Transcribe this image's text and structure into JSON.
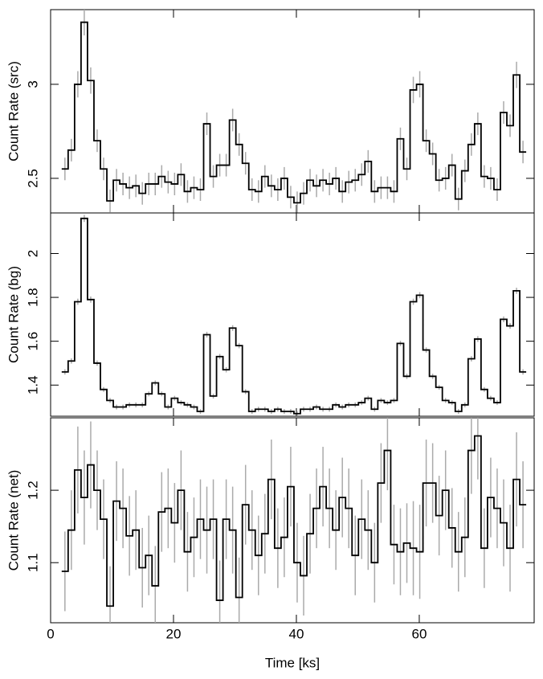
{
  "chart_data": [
    {
      "type": "step",
      "ylabel": "Count Rate (src)",
      "xlim": [
        0,
        78.7
      ],
      "xticks": [
        0,
        20,
        40,
        60
      ],
      "ylim": [
        2.316,
        3.397
      ],
      "yticks": [
        2.5,
        3
      ],
      "color": "#000000",
      "error_color": "#aaaaaa",
      "x": [
        2.33,
        3.38,
        4.43,
        5.48,
        6.53,
        7.58,
        8.63,
        9.68,
        10.73,
        11.78,
        12.83,
        13.88,
        14.93,
        15.98,
        17.03,
        18.08,
        19.13,
        20.18,
        21.23,
        22.28,
        23.33,
        24.38,
        25.43,
        26.48,
        27.53,
        28.58,
        29.63,
        30.68,
        31.73,
        32.78,
        33.83,
        34.88,
        35.93,
        36.98,
        38.03,
        39.08,
        40.13,
        41.18,
        42.23,
        43.28,
        44.33,
        45.38,
        46.43,
        47.48,
        48.53,
        49.58,
        50.63,
        51.68,
        52.73,
        53.78,
        54.83,
        55.88,
        56.93,
        57.98,
        59.03,
        60.08,
        61.13,
        62.18,
        63.23,
        64.28,
        65.33,
        66.38,
        67.43,
        68.48,
        69.53,
        70.58,
        71.63,
        72.68,
        73.73,
        74.78,
        75.83,
        76.88
      ],
      "values": [
        2.55,
        2.65,
        3.0,
        3.33,
        3.02,
        2.7,
        2.55,
        2.38,
        2.49,
        2.47,
        2.45,
        2.46,
        2.42,
        2.47,
        2.47,
        2.51,
        2.48,
        2.47,
        2.52,
        2.43,
        2.45,
        2.44,
        2.79,
        2.51,
        2.57,
        2.57,
        2.81,
        2.68,
        2.58,
        2.44,
        2.43,
        2.51,
        2.46,
        2.44,
        2.5,
        2.4,
        2.37,
        2.42,
        2.49,
        2.46,
        2.49,
        2.47,
        2.5,
        2.43,
        2.48,
        2.49,
        2.52,
        2.59,
        2.43,
        2.45,
        2.45,
        2.43,
        2.71,
        2.55,
        2.97,
        3.0,
        2.7,
        2.63,
        2.49,
        2.5,
        2.57,
        2.39,
        2.54,
        2.68,
        2.79,
        2.51,
        2.5,
        2.44,
        2.85,
        2.78,
        3.05,
        2.64
      ],
      "errors": [
        0.06,
        0.06,
        0.07,
        0.07,
        0.07,
        0.06,
        0.06,
        0.06,
        0.06,
        0.06,
        0.06,
        0.06,
        0.06,
        0.06,
        0.06,
        0.06,
        0.06,
        0.06,
        0.06,
        0.06,
        0.06,
        0.06,
        0.06,
        0.06,
        0.06,
        0.06,
        0.06,
        0.06,
        0.06,
        0.06,
        0.06,
        0.06,
        0.06,
        0.06,
        0.06,
        0.06,
        0.06,
        0.06,
        0.06,
        0.06,
        0.06,
        0.06,
        0.06,
        0.06,
        0.06,
        0.06,
        0.06,
        0.06,
        0.06,
        0.06,
        0.06,
        0.06,
        0.06,
        0.06,
        0.07,
        0.07,
        0.06,
        0.06,
        0.06,
        0.06,
        0.06,
        0.06,
        0.06,
        0.06,
        0.06,
        0.06,
        0.06,
        0.06,
        0.06,
        0.06,
        0.07,
        0.06
      ]
    },
    {
      "type": "step",
      "ylabel": "Count Rate (bg)",
      "xlim": [
        0,
        78.7
      ],
      "xticks": [
        0,
        20,
        40,
        60
      ],
      "ylim": [
        1.258,
        2.185
      ],
      "yticks": [
        1.4,
        1.6,
        1.8,
        2
      ],
      "color": "#000000",
      "error_color": "#aaaaaa",
      "x": [
        2.33,
        3.38,
        4.43,
        5.48,
        6.53,
        7.58,
        8.63,
        9.68,
        10.73,
        11.78,
        12.83,
        13.88,
        14.93,
        15.98,
        17.03,
        18.08,
        19.13,
        20.18,
        21.23,
        22.28,
        23.33,
        24.38,
        25.43,
        26.48,
        27.53,
        28.58,
        29.63,
        30.68,
        31.73,
        32.78,
        33.83,
        34.88,
        35.93,
        36.98,
        38.03,
        39.08,
        40.13,
        41.18,
        42.23,
        43.28,
        44.33,
        45.38,
        46.43,
        47.48,
        48.53,
        49.58,
        50.63,
        51.68,
        52.73,
        53.78,
        54.83,
        55.88,
        56.93,
        57.98,
        59.03,
        60.08,
        61.13,
        62.18,
        63.23,
        64.28,
        65.33,
        66.38,
        67.43,
        68.48,
        69.53,
        70.58,
        71.63,
        72.68,
        73.73,
        74.78,
        75.83,
        76.88
      ],
      "values": [
        1.46,
        1.51,
        1.78,
        2.16,
        1.79,
        1.5,
        1.38,
        1.33,
        1.3,
        1.3,
        1.31,
        1.31,
        1.31,
        1.36,
        1.41,
        1.36,
        1.3,
        1.34,
        1.32,
        1.31,
        1.3,
        1.28,
        1.63,
        1.35,
        1.53,
        1.47,
        1.66,
        1.58,
        1.37,
        1.28,
        1.29,
        1.29,
        1.28,
        1.29,
        1.28,
        1.28,
        1.27,
        1.29,
        1.29,
        1.3,
        1.29,
        1.29,
        1.31,
        1.3,
        1.31,
        1.31,
        1.32,
        1.34,
        1.29,
        1.33,
        1.32,
        1.33,
        1.59,
        1.44,
        1.78,
        1.81,
        1.56,
        1.44,
        1.39,
        1.33,
        1.32,
        1.28,
        1.31,
        1.52,
        1.61,
        1.38,
        1.34,
        1.32,
        1.7,
        1.67,
        1.83,
        1.46
      ],
      "errors": [
        0.012,
        0.012,
        0.014,
        0.016,
        0.014,
        0.012,
        0.011,
        0.011,
        0.011,
        0.011,
        0.011,
        0.011,
        0.011,
        0.011,
        0.011,
        0.011,
        0.011,
        0.011,
        0.011,
        0.011,
        0.011,
        0.011,
        0.013,
        0.011,
        0.012,
        0.012,
        0.013,
        0.012,
        0.011,
        0.011,
        0.011,
        0.011,
        0.011,
        0.011,
        0.011,
        0.011,
        0.011,
        0.011,
        0.011,
        0.011,
        0.011,
        0.011,
        0.011,
        0.011,
        0.011,
        0.011,
        0.011,
        0.011,
        0.011,
        0.011,
        0.011,
        0.011,
        0.012,
        0.012,
        0.014,
        0.014,
        0.012,
        0.012,
        0.011,
        0.011,
        0.011,
        0.011,
        0.011,
        0.012,
        0.013,
        0.011,
        0.011,
        0.011,
        0.013,
        0.013,
        0.014,
        0.012
      ]
    },
    {
      "type": "step",
      "ylabel": "Count Rate (net)",
      "xlabel": "Time [ks]",
      "xlim": [
        0,
        78.7
      ],
      "xticks": [
        0,
        20,
        40,
        60
      ],
      "ylim": [
        1.017,
        1.3
      ],
      "yticks": [
        1.1,
        1.2
      ],
      "color": "#000000",
      "error_color": "#aaaaaa",
      "x": [
        2.33,
        3.38,
        4.43,
        5.48,
        6.53,
        7.58,
        8.63,
        9.68,
        10.73,
        11.78,
        12.83,
        13.88,
        14.93,
        15.98,
        17.03,
        18.08,
        19.13,
        20.18,
        21.23,
        22.28,
        23.33,
        24.38,
        25.43,
        26.48,
        27.53,
        28.58,
        29.63,
        30.68,
        31.73,
        32.78,
        33.83,
        34.88,
        35.93,
        36.98,
        38.03,
        39.08,
        40.13,
        41.18,
        42.23,
        43.28,
        44.33,
        45.38,
        46.43,
        47.48,
        48.53,
        49.58,
        50.63,
        51.68,
        52.73,
        53.78,
        54.83,
        55.88,
        56.93,
        57.98,
        59.03,
        60.08,
        61.13,
        62.18,
        63.23,
        64.28,
        65.33,
        66.38,
        67.43,
        68.48,
        69.53,
        70.58,
        71.63,
        72.68,
        73.73,
        74.78,
        75.83,
        76.88
      ],
      "values": [
        1.088,
        1.145,
        1.228,
        1.19,
        1.235,
        1.2,
        1.16,
        1.04,
        1.185,
        1.175,
        1.137,
        1.145,
        1.093,
        1.11,
        1.068,
        1.17,
        1.175,
        1.155,
        1.2,
        1.115,
        1.135,
        1.16,
        1.145,
        1.16,
        1.048,
        1.16,
        1.145,
        1.052,
        1.18,
        1.145,
        1.11,
        1.14,
        1.215,
        1.12,
        1.135,
        1.205,
        1.1,
        1.082,
        1.14,
        1.175,
        1.205,
        1.175,
        1.145,
        1.19,
        1.175,
        1.11,
        1.16,
        1.145,
        1.1,
        1.21,
        1.255,
        1.125,
        1.115,
        1.127,
        1.12,
        1.115,
        1.21,
        1.21,
        1.165,
        1.2,
        1.148,
        1.115,
        1.135,
        1.255,
        1.275,
        1.12,
        1.19,
        1.175,
        1.155,
        1.12,
        1.215,
        1.18
      ],
      "errors": [
        0.055,
        0.055,
        0.06,
        0.065,
        0.06,
        0.055,
        0.055,
        0.055,
        0.055,
        0.055,
        0.055,
        0.055,
        0.055,
        0.055,
        0.055,
        0.055,
        0.055,
        0.055,
        0.055,
        0.055,
        0.055,
        0.055,
        0.06,
        0.055,
        0.055,
        0.055,
        0.06,
        0.055,
        0.055,
        0.055,
        0.055,
        0.055,
        0.055,
        0.055,
        0.055,
        0.055,
        0.055,
        0.055,
        0.055,
        0.055,
        0.055,
        0.055,
        0.055,
        0.055,
        0.055,
        0.055,
        0.055,
        0.055,
        0.055,
        0.055,
        0.055,
        0.055,
        0.06,
        0.055,
        0.065,
        0.065,
        0.06,
        0.055,
        0.055,
        0.055,
        0.055,
        0.055,
        0.055,
        0.06,
        0.06,
        0.055,
        0.055,
        0.055,
        0.06,
        0.06,
        0.065,
        0.06
      ]
    }
  ]
}
